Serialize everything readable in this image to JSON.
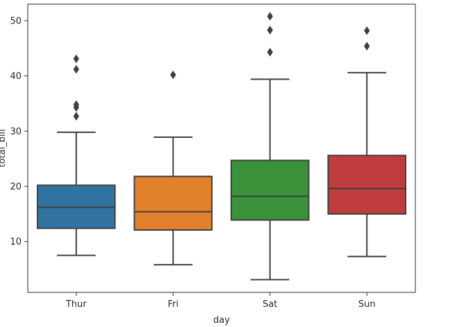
{
  "chart_data": {
    "type": "box",
    "title": "",
    "xlabel": "day",
    "ylabel": "total_bill",
    "categories": [
      "Thur",
      "Fri",
      "Sat",
      "Sun"
    ],
    "ylim": [
      0.8,
      53.0
    ],
    "yticks": [
      10,
      20,
      30,
      40,
      50
    ],
    "grid": false,
    "boxes": [
      {
        "category": "Thur",
        "color": "#3274a1",
        "whisker_low": 7.5,
        "q1": 12.4,
        "median": 16.2,
        "q3": 20.2,
        "whisker_high": 29.8,
        "outliers": [
          32.7,
          34.3,
          34.8,
          41.2,
          43.1
        ]
      },
      {
        "category": "Fri",
        "color": "#e1812c",
        "whisker_low": 5.8,
        "q1": 12.1,
        "median": 15.4,
        "q3": 21.8,
        "whisker_high": 28.9,
        "outliers": [
          40.2
        ]
      },
      {
        "category": "Sat",
        "color": "#3a923a",
        "whisker_low": 3.1,
        "q1": 13.9,
        "median": 18.2,
        "q3": 24.7,
        "whisker_high": 39.4,
        "outliers": [
          44.3,
          48.3,
          48.3,
          50.8
        ]
      },
      {
        "category": "Sun",
        "color": "#c03d3e",
        "whisker_low": 7.3,
        "q1": 15.0,
        "median": 19.6,
        "q3": 25.6,
        "whisker_high": 40.6,
        "outliers": [
          45.4,
          48.2
        ]
      }
    ]
  }
}
